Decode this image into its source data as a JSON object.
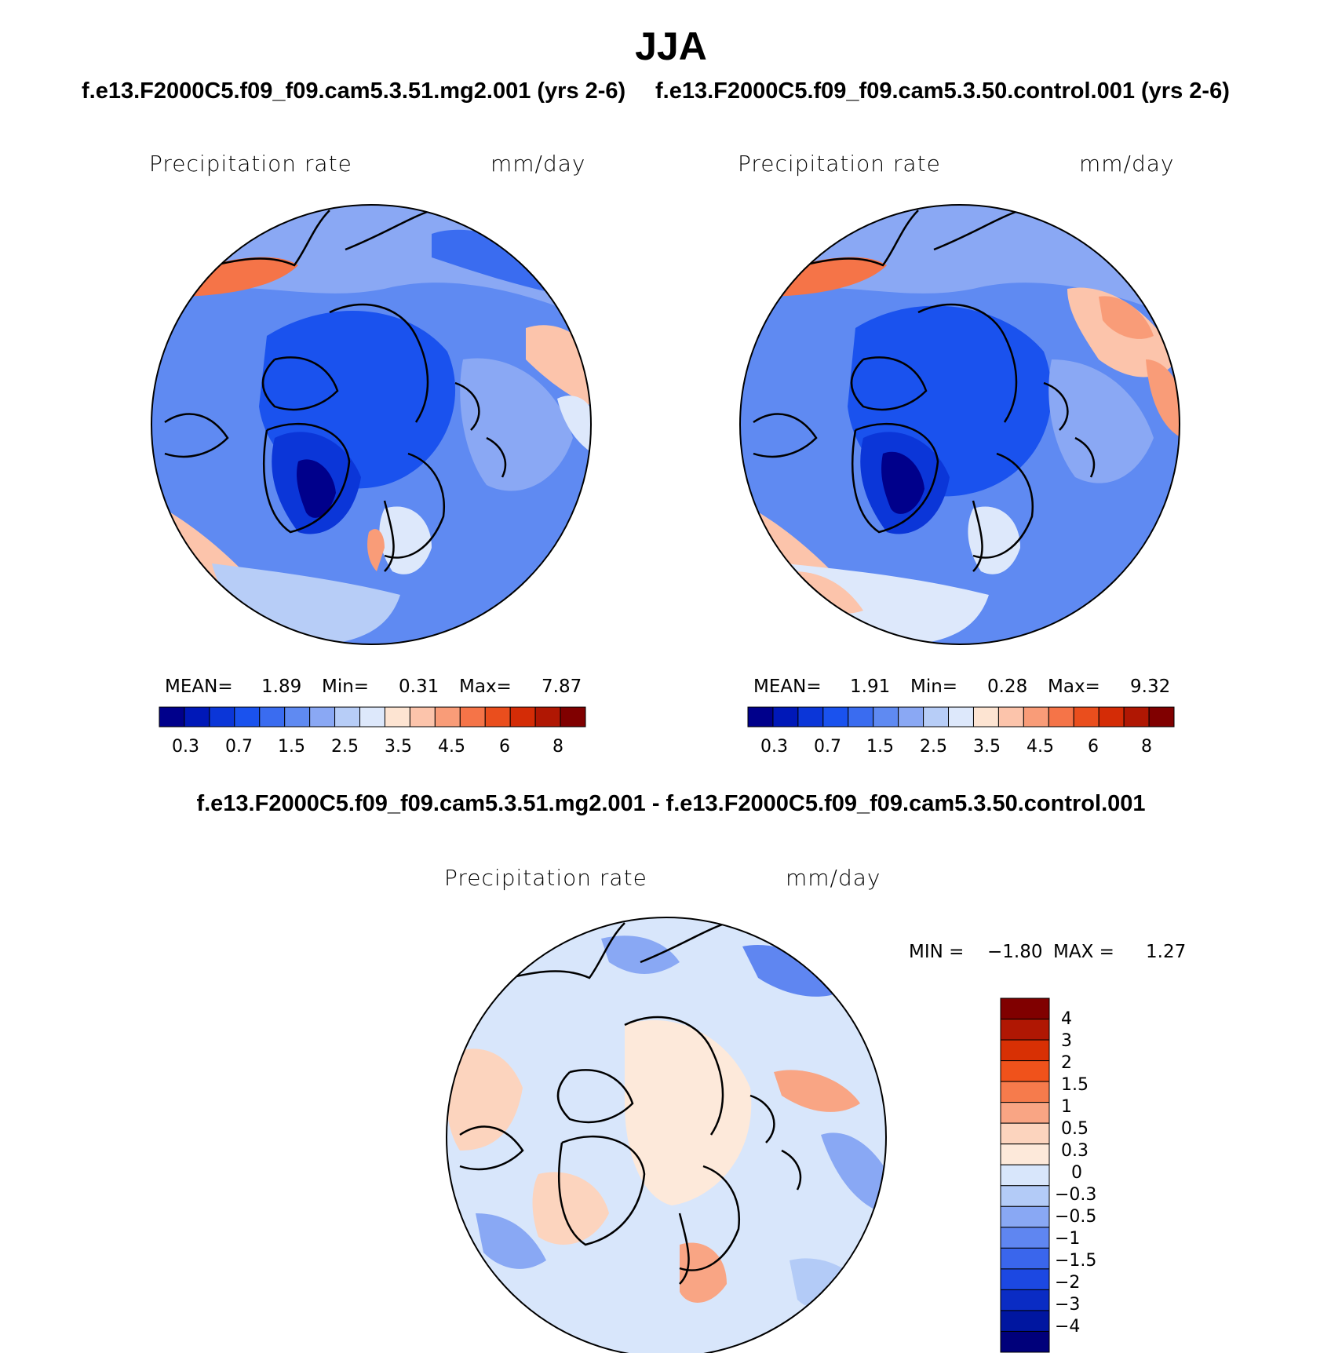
{
  "figure": {
    "season": "JJA",
    "panels": [
      {
        "case": "f.e13.F2000C5.f09_f09.cam5.3.51.mg2.001 (yrs 2-6)",
        "variable": "Precipitation rate",
        "units": "mm/day",
        "mean_label": "MEAN=",
        "mean": "1.89",
        "min_label": "Min=",
        "min": "0.31",
        "max_label": "Max=",
        "max": "7.87"
      },
      {
        "case": "f.e13.F2000C5.f09_f09.cam5.3.50.control.001 (yrs 2-6)",
        "variable": "Precipitation rate",
        "units": "mm/day",
        "mean_label": "MEAN=",
        "mean": "1.91",
        "min_label": "Min=",
        "min": "0.28",
        "max_label": "Max=",
        "max": "9.32"
      }
    ],
    "difference": {
      "title": "f.e13.F2000C5.f09_f09.cam5.3.51.mg2.001 - f.e13.F2000C5.f09_f09.cam5.3.50.control.001",
      "variable": "Precipitation rate",
      "units": "mm/day",
      "min_label": "MIN =",
      "min": "−1.80",
      "max_label": "MAX =",
      "max": "1.27"
    }
  },
  "colorbars": {
    "absolute": {
      "colors": [
        "#00008b",
        "#0018b8",
        "#0b36d8",
        "#1a52ee",
        "#3a6cf0",
        "#5f8af2",
        "#8aa8f4",
        "#b7cdf7",
        "#dde8fb",
        "#fde4d2",
        "#fcc4ab",
        "#f99c78",
        "#f57448",
        "#ea4e1d",
        "#d42c06",
        "#b01703",
        "#800000"
      ],
      "ticks": [
        "0.3",
        "0.7",
        "1.5",
        "2.5",
        "3.5",
        "4.5",
        "6",
        "8"
      ]
    },
    "difference": {
      "colors_top_to_bottom": [
        "#800000",
        "#b01703",
        "#d83004",
        "#f0521b",
        "#f67b4c",
        "#f9a584",
        "#fcd4be",
        "#fde9da",
        "#d8e6fb",
        "#b3cbf7",
        "#89a8f4",
        "#5f86f1",
        "#3a66ec",
        "#1c48e2",
        "#0a2cc4",
        "#0016a0",
        "#00007a"
      ],
      "ticks": [
        "4",
        "3",
        "2",
        "1.5",
        "1",
        "0.5",
        "0.3",
        "0",
        "−0.3",
        "−0.5",
        "−1",
        "−1.5",
        "−2",
        "−3",
        "−4"
      ]
    }
  }
}
